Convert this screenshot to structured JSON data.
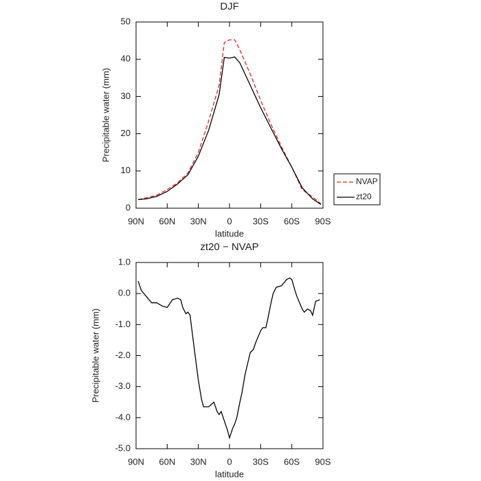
{
  "chart_data": [
    {
      "type": "line",
      "title": "DJF",
      "xlabel": "latitude",
      "ylabel": "Precipitable water (mm)",
      "x": [
        88,
        80,
        70,
        60,
        50,
        40,
        30,
        20,
        10,
        5,
        0,
        -5,
        -10,
        -20,
        -30,
        -40,
        -50,
        -60,
        -70,
        -80,
        -88
      ],
      "series": [
        {
          "name": "NVAP",
          "color": "#e8211f",
          "linestyle": "dashed",
          "values": [
            2.3,
            2.8,
            3.5,
            5,
            6.8,
            9.5,
            15,
            23.5,
            33,
            44.5,
            45.2,
            45.2,
            42.5,
            36,
            29,
            22.5,
            16.5,
            11,
            5,
            3,
            1.2
          ]
        },
        {
          "name": "zt20",
          "color": "#000000",
          "linestyle": "solid",
          "values": [
            2.3,
            2.5,
            3.2,
            4.5,
            6.5,
            9,
            14,
            21,
            30.5,
            40.5,
            40.3,
            40.6,
            39,
            33,
            27,
            21.5,
            16,
            11,
            5.5,
            2.5,
            1
          ]
        }
      ],
      "xlim": [
        90,
        -90
      ],
      "xticks": [
        {
          "value": 90,
          "label": "90N"
        },
        {
          "value": 60,
          "label": "60N"
        },
        {
          "value": 30,
          "label": "30N"
        },
        0,
        {
          "value": -30,
          "label": "30S"
        },
        {
          "value": -60,
          "label": "60S"
        },
        {
          "value": -90,
          "label": "90S"
        }
      ],
      "ylim": [
        0,
        50
      ],
      "yticks": [
        0,
        10,
        20,
        30,
        40,
        50
      ],
      "legend": "right"
    },
    {
      "type": "line",
      "title": "zt20 − NVAP",
      "xlabel": "latitude",
      "ylabel": "Precipitable water (mm)",
      "x": [
        88,
        85,
        80,
        75,
        70,
        65,
        60,
        55,
        50,
        47,
        45,
        42,
        40,
        38,
        35,
        30,
        27,
        25,
        20,
        15,
        12,
        10,
        8,
        5,
        2,
        0,
        -3,
        -5,
        -7,
        -10,
        -12,
        -15,
        -20,
        -23,
        -25,
        -30,
        -32,
        -35,
        -37,
        -40,
        -42,
        -45,
        -50,
        -55,
        -58,
        -60,
        -63,
        -65,
        -70,
        -72,
        -75,
        -78,
        -80,
        -83,
        -87
      ],
      "values": [
        0.4,
        0.1,
        -0.1,
        -0.3,
        -0.3,
        -0.4,
        -0.45,
        -0.2,
        -0.15,
        -0.2,
        -0.45,
        -0.65,
        -0.6,
        -0.7,
        -1.5,
        -2.8,
        -3.4,
        -3.65,
        -3.65,
        -3.5,
        -3.8,
        -3.9,
        -3.8,
        -4.1,
        -4.4,
        -4.65,
        -4.35,
        -4.2,
        -4.0,
        -3.5,
        -3.2,
        -2.6,
        -1.9,
        -1.8,
        -1.6,
        -1.2,
        -1.1,
        -1.1,
        -0.8,
        -0.3,
        0.0,
        0.2,
        0.25,
        0.45,
        0.5,
        0.45,
        0.1,
        -0.1,
        -0.5,
        -0.6,
        -0.5,
        -0.55,
        -0.7,
        -0.25,
        -0.2
      ],
      "color": "#000000",
      "xlim": [
        90,
        -90
      ],
      "xticks": [
        {
          "value": 90,
          "label": "90N"
        },
        {
          "value": 60,
          "label": "60N"
        },
        {
          "value": 30,
          "label": "30N"
        },
        0,
        {
          "value": -30,
          "label": "30S"
        },
        {
          "value": -60,
          "label": "60S"
        },
        {
          "value": -90,
          "label": "90S"
        }
      ],
      "ylim": [
        -5,
        1
      ],
      "yticks": [
        {
          "value": -5,
          "label": "-5.0"
        },
        {
          "value": -4,
          "label": "-4.0"
        },
        {
          "value": -3,
          "label": "-3.0"
        },
        {
          "value": -2,
          "label": "-2.0"
        },
        {
          "value": -1,
          "label": "-1.0"
        },
        {
          "value": 0,
          "label": "0.0"
        },
        {
          "value": 1,
          "label": "1.0"
        }
      ]
    }
  ]
}
